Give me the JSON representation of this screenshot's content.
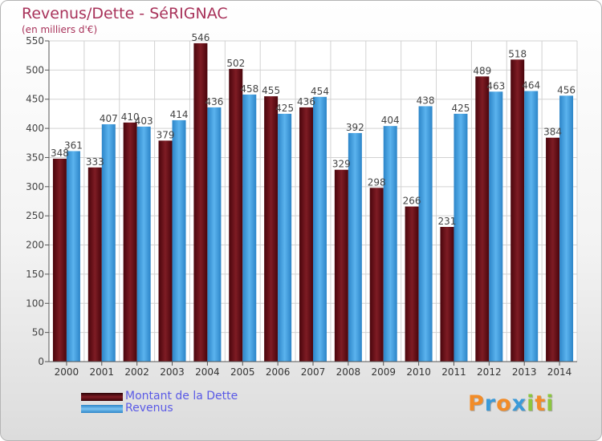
{
  "title": "Revenus/Dette - SéRIGNAC",
  "subtitle": "(en milliers d'€)",
  "colors": {
    "dette": "#6b0f17",
    "revenus": "#3b9de0",
    "title": "#a8325a",
    "legend_text": "#5a5ae6"
  },
  "logo": {
    "text": "Proxiti",
    "letters": [
      "P",
      "r",
      "o",
      "x",
      "i",
      "t",
      "i"
    ],
    "colors": [
      "#f28c28",
      "#3a9ad9",
      "#f28c28",
      "#3a9ad9",
      "#8cc63f",
      "#f28c28",
      "#8cc63f"
    ]
  },
  "chart_data": {
    "type": "bar",
    "title": "Revenus/Dette - SéRIGNAC",
    "subtitle": "(en milliers d'€)",
    "categories": [
      "2000",
      "2001",
      "2002",
      "2003",
      "2004",
      "2005",
      "2006",
      "2007",
      "2008",
      "2009",
      "2010",
      "2011",
      "2012",
      "2013",
      "2014"
    ],
    "series": [
      {
        "name": "Montant de la Dette",
        "values": [
          348,
          333,
          410,
          379,
          546,
          502,
          455,
          436,
          329,
          298,
          266,
          231,
          489,
          518,
          384
        ]
      },
      {
        "name": "Revenus",
        "values": [
          361,
          407,
          403,
          414,
          436,
          458,
          425,
          454,
          392,
          404,
          438,
          425,
          463,
          464,
          456
        ]
      }
    ],
    "ylim": [
      0,
      550
    ],
    "yticks": [
      0,
      50,
      100,
      150,
      200,
      250,
      300,
      350,
      400,
      450,
      500,
      550
    ],
    "grid": true,
    "legend_position": "bottom-left"
  }
}
